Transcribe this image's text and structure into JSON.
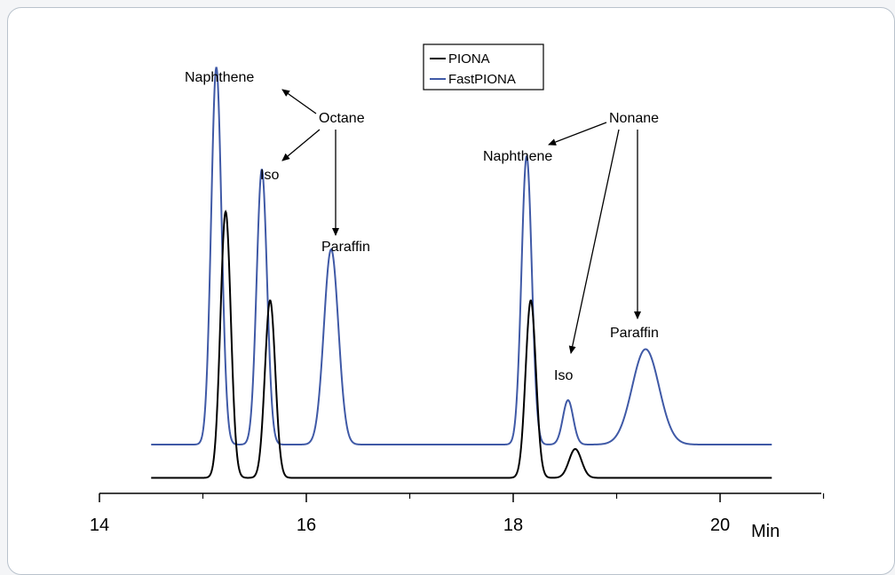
{
  "chart_data": {
    "type": "line",
    "xlim": [
      14,
      21.3
    ],
    "ylim": [
      0,
      1
    ],
    "x_ticks": [
      14,
      16,
      18,
      20
    ],
    "x_tick_labels": [
      "14",
      "16",
      "18",
      "20"
    ],
    "x_unit": "Min",
    "grid": false,
    "legend_position": "top-center",
    "series": [
      {
        "name": "PIONA",
        "color": "#000000",
        "x_range": [
          14.5,
          20.5
        ],
        "baseline": 0.035,
        "peaks": [
          {
            "x": 15.22,
            "height": 0.6,
            "width": 0.05
          },
          {
            "x": 15.65,
            "height": 0.4,
            "width": 0.05
          },
          {
            "x": 18.17,
            "height": 0.4,
            "width": 0.05
          },
          {
            "x": 18.6,
            "height": 0.065,
            "width": 0.06
          }
        ]
      },
      {
        "name": "FastPIONA",
        "color": "#3f59a6",
        "x_range": [
          14.5,
          20.5
        ],
        "baseline": 0.11,
        "peaks": [
          {
            "x": 15.13,
            "height": 0.85,
            "width": 0.05
          },
          {
            "x": 15.57,
            "height": 0.62,
            "width": 0.05
          },
          {
            "x": 16.24,
            "height": 0.44,
            "width": 0.07
          },
          {
            "x": 18.13,
            "height": 0.65,
            "width": 0.05
          },
          {
            "x": 18.53,
            "height": 0.1,
            "width": 0.05
          },
          {
            "x": 19.28,
            "height": 0.215,
            "width": 0.13
          }
        ]
      }
    ],
    "annotations": {
      "octane": "Octane",
      "nonane": "Nonane",
      "naphthene_1": "Naphthene",
      "iso_1": "Iso",
      "paraffin_1": "Paraffin",
      "naphthene_2": "Naphthene",
      "iso_2": "Iso",
      "paraffin_2": "Paraffin"
    }
  }
}
